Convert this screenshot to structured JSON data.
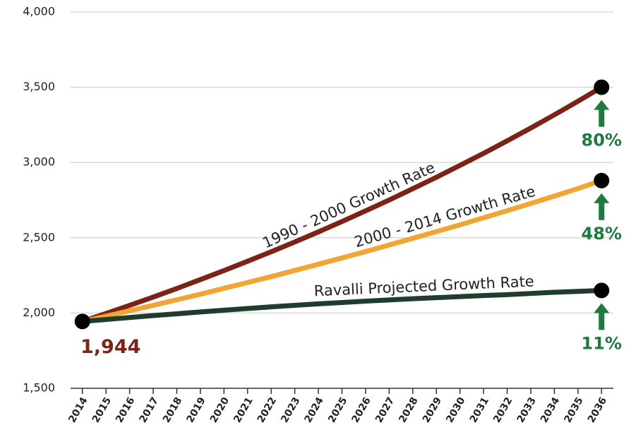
{
  "chart_data": {
    "type": "line",
    "x": [
      2014,
      2015,
      2016,
      2017,
      2018,
      2019,
      2020,
      2021,
      2022,
      2023,
      2024,
      2025,
      2026,
      2027,
      2028,
      2029,
      2030,
      2031,
      2032,
      2033,
      2034,
      2035,
      2036
    ],
    "series": [
      {
        "name": "1990 - 2000 Growth Rate",
        "color": "#7b2317",
        "values": [
          1944,
          1997,
          2051,
          2106,
          2163,
          2222,
          2282,
          2344,
          2407,
          2472,
          2539,
          2608,
          2679,
          2751,
          2826,
          2902,
          2981,
          3061,
          3144,
          3229,
          3317,
          3407,
          3500
        ]
      },
      {
        "name": "2000 - 2014 Growth Rate",
        "color": "#f0a534",
        "values": [
          1944,
          1979,
          2015,
          2051,
          2088,
          2125,
          2164,
          2203,
          2242,
          2283,
          2324,
          2366,
          2408,
          2452,
          2496,
          2541,
          2586,
          2633,
          2680,
          2728,
          2777,
          2827,
          2880
        ]
      },
      {
        "name": "Ravalli Projected Growth Rate",
        "color": "#1f3d2a",
        "values": [
          1944,
          1957,
          1970,
          1983,
          1995,
          2007,
          2019,
          2030,
          2041,
          2051,
          2061,
          2070,
          2079,
          2087,
          2095,
          2102,
          2109,
          2116,
          2122,
          2130,
          2138,
          2144,
          2150
        ]
      }
    ],
    "annotations": [
      {
        "text": "1,944",
        "color": "#7b2317"
      },
      {
        "text": "80%",
        "color": "#1e7a3e"
      },
      {
        "text": "48%",
        "color": "#1e7a3e"
      },
      {
        "text": "11%",
        "color": "#1e7a3e"
      }
    ],
    "xlim": [
      2013.5,
      2036.5
    ],
    "ylim": [
      1500,
      4000
    ],
    "yticks": [
      {
        "value": 1500,
        "label": "1,500"
      },
      {
        "value": 2000,
        "label": "2,000"
      },
      {
        "value": 2500,
        "label": "2,500"
      },
      {
        "value": 3000,
        "label": "3,000"
      },
      {
        "value": 3500,
        "label": "3,500"
      },
      {
        "value": 4000,
        "label": "4,000"
      }
    ],
    "xticks": [
      2014,
      2015,
      2016,
      2017,
      2018,
      2019,
      2020,
      2021,
      2022,
      2023,
      2024,
      2025,
      2026,
      2027,
      2028,
      2029,
      2030,
      2031,
      2032,
      2033,
      2034,
      2035,
      2036
    ],
    "grid": true
  }
}
